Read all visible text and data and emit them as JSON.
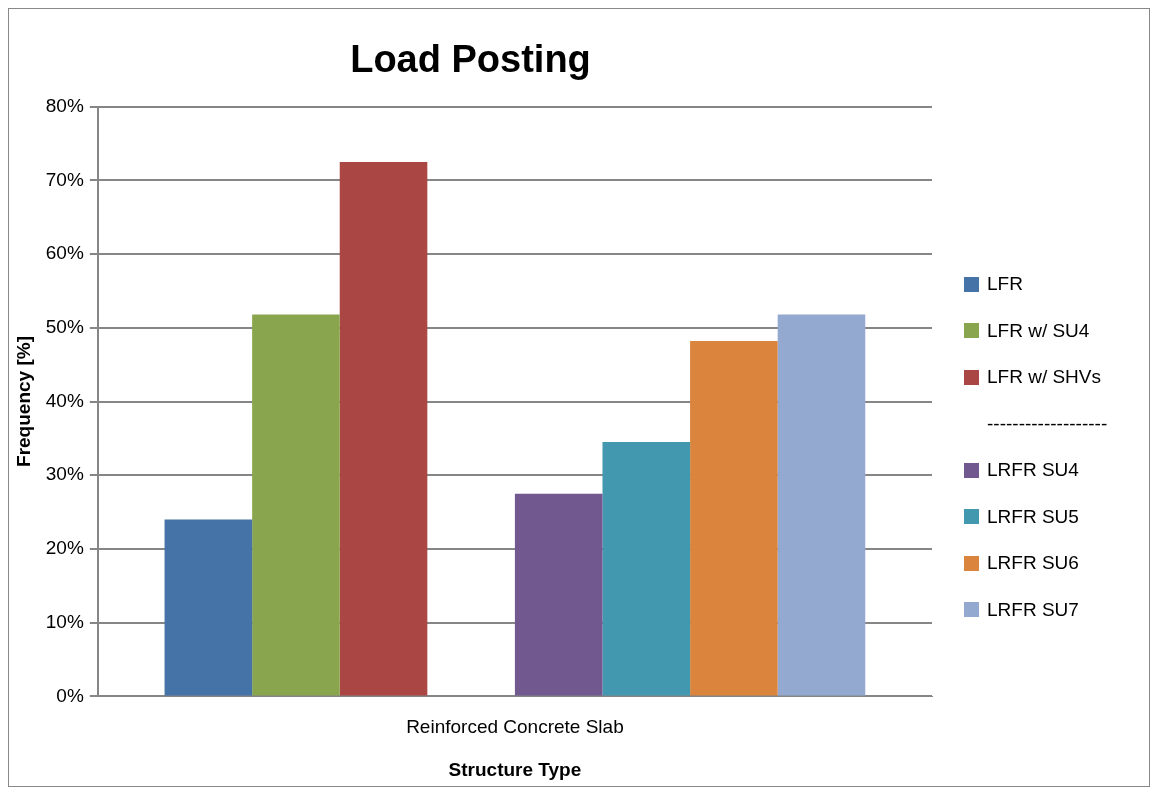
{
  "chart_data": {
    "type": "bar",
    "title": "Load Posting",
    "xlabel": "Structure Type",
    "ylabel": "Frequency [%]",
    "categories": [
      "Reinforced Concrete Slab"
    ],
    "series": [
      {
        "name": "LFR",
        "color": "#4572a7",
        "values": [
          24.0
        ]
      },
      {
        "name": "LFR w/ SU4",
        "color": "#89a54e",
        "values": [
          51.8
        ]
      },
      {
        "name": "LFR w/ SHVs",
        "color": "#aa4643",
        "values": [
          72.5
        ]
      },
      {
        "name": "-------------------",
        "color": null,
        "values": [
          null
        ]
      },
      {
        "name": "LRFR SU4",
        "color": "#71588f",
        "values": [
          27.5
        ]
      },
      {
        "name": "LRFR SU5",
        "color": "#4198af",
        "values": [
          34.5
        ]
      },
      {
        "name": "LRFR SU6",
        "color": "#db843d",
        "values": [
          48.2
        ]
      },
      {
        "name": "LRFR SU7",
        "color": "#93a9cf",
        "values": [
          51.8
        ]
      }
    ],
    "ylim": [
      0,
      80
    ],
    "yticks": [
      {
        "value": 0,
        "label": "0%"
      },
      {
        "value": 10,
        "label": "10%"
      },
      {
        "value": 20,
        "label": "20%"
      },
      {
        "value": 30,
        "label": "30%"
      },
      {
        "value": 40,
        "label": "40%"
      },
      {
        "value": 50,
        "label": "50%"
      },
      {
        "value": 60,
        "label": "60%"
      },
      {
        "value": 70,
        "label": "70%"
      },
      {
        "value": 80,
        "label": "80%"
      }
    ],
    "grid": "y",
    "legend": "right"
  }
}
